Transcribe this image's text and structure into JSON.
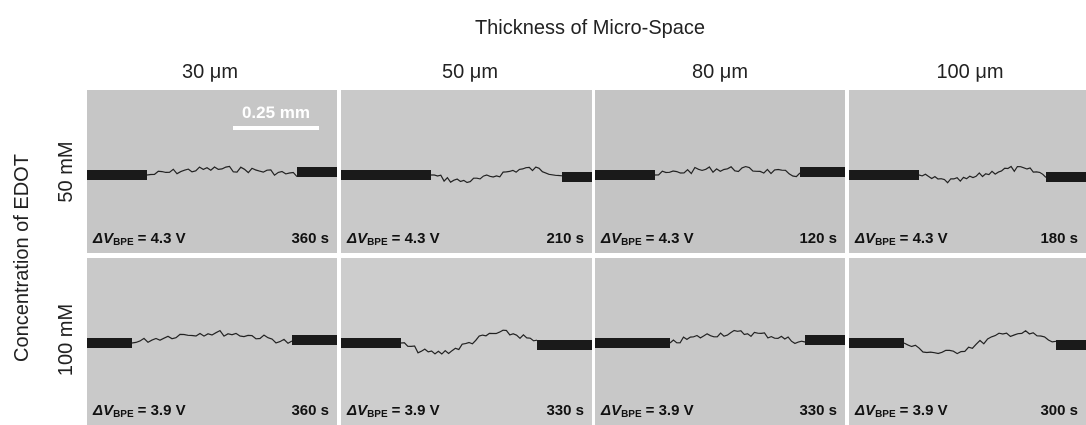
{
  "header": {
    "title": "Thickness of Micro-Space",
    "columns": [
      "30 μm",
      "50 μm",
      "80 μm",
      "100 μm"
    ]
  },
  "y_label": "Concentration of EDOT",
  "scale_bar": "0.25 mm",
  "voltage_symbol": "ΔV",
  "voltage_subscript": "BPE",
  "rows": [
    {
      "label": "50 mM",
      "panels": [
        {
          "voltage": "= 4.3 V",
          "time": "360 s"
        },
        {
          "voltage": "= 4.3 V",
          "time": "210 s"
        },
        {
          "voltage": "= 4.3 V",
          "time": "120 s"
        },
        {
          "voltage": "= 4.3 V",
          "time": "180 s"
        }
      ]
    },
    {
      "label": "100 mM",
      "panels": [
        {
          "voltage": "= 3.9 V",
          "time": "360 s"
        },
        {
          "voltage": "= 3.9 V",
          "time": "330 s"
        },
        {
          "voltage": "= 3.9 V",
          "time": "330 s"
        },
        {
          "voltage": "= 3.9 V",
          "time": "300 s"
        }
      ]
    }
  ]
}
